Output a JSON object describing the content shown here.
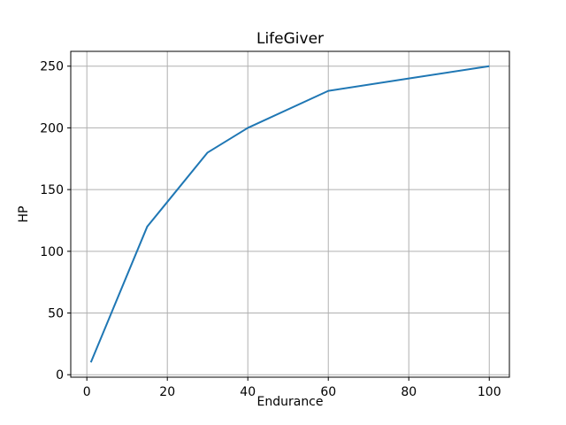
{
  "chart_data": {
    "type": "line",
    "title": "LifeGiver",
    "xlabel": "Endurance",
    "ylabel": "HP",
    "series": [
      {
        "name": "HP",
        "color": "#1f77b4",
        "x": [
          1,
          15,
          20,
          30,
          40,
          60,
          80,
          100
        ],
        "y": [
          10,
          120,
          140,
          180,
          200,
          230,
          240,
          250
        ]
      }
    ],
    "xlim": [
      -4,
      105
    ],
    "ylim": [
      -2,
      262
    ],
    "xticks": [
      0,
      20,
      40,
      60,
      80,
      100
    ],
    "yticks": [
      0,
      50,
      100,
      150,
      200,
      250
    ],
    "grid": true,
    "grid_color": "#b0b0b0",
    "axis_color": "#000000",
    "background_color": "#ffffff",
    "legend": false
  }
}
